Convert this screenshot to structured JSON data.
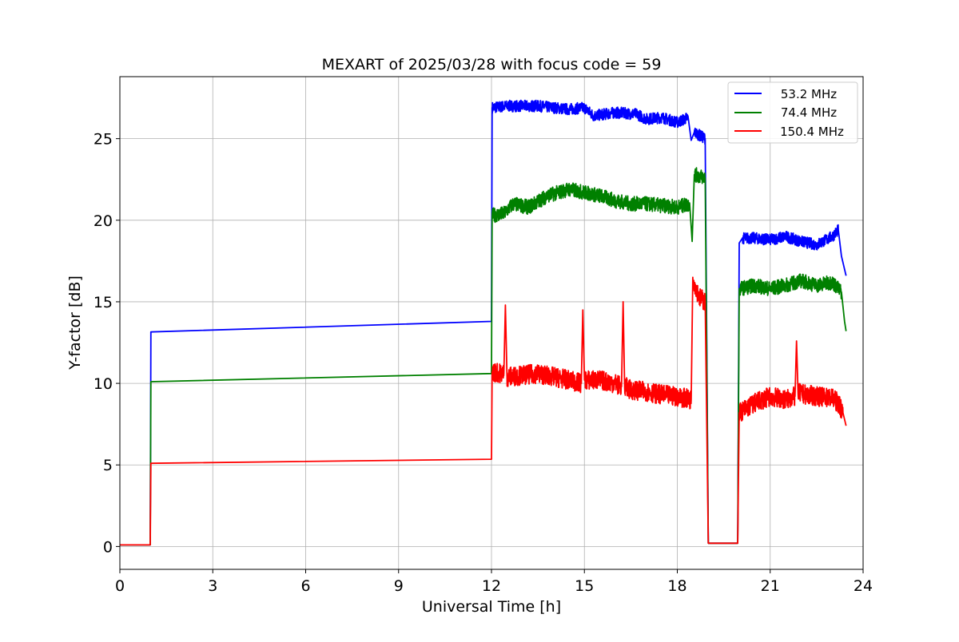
{
  "chart_data": {
    "type": "line",
    "title": "MEXART of 2025/03/28 with focus code = 59",
    "xlabel": "Universal Time [h]",
    "ylabel": "Y-factor [dB]",
    "xlim": [
      0,
      24
    ],
    "ylim": [
      -1.4,
      28.8
    ],
    "xticks": [
      0,
      3,
      6,
      9,
      12,
      15,
      18,
      21,
      24
    ],
    "yticks": [
      0,
      5,
      10,
      15,
      20,
      25
    ],
    "xtick_labels": [
      "0",
      "3",
      "6",
      "9",
      "12",
      "15",
      "18",
      "21",
      "24"
    ],
    "ytick_labels": [
      "0",
      "5",
      "10",
      "15",
      "20",
      "25"
    ],
    "grid": true,
    "legend_position": "top-right",
    "series": [
      {
        "name": "53.2 MHz",
        "color": "#0000ff",
        "x": [
          0,
          0.98,
          1.0,
          12.0,
          12.02,
          12.5,
          13.5,
          14.5,
          15.0,
          15.3,
          16.0,
          16.7,
          17.0,
          17.5,
          18.0,
          18.35,
          18.45,
          18.55,
          18.9,
          19.0,
          19.05,
          19.95,
          20.0,
          20.1,
          20.5,
          21.0,
          21.5,
          22.0,
          22.5,
          23.0,
          23.2,
          23.3,
          23.45
        ],
        "y": [
          0.1,
          0.1,
          13.15,
          13.8,
          26.9,
          27.0,
          27.0,
          26.8,
          26.9,
          26.4,
          26.6,
          26.5,
          26.2,
          26.3,
          26.0,
          26.3,
          24.9,
          25.4,
          25.0,
          0.2,
          0.2,
          0.2,
          18.6,
          18.9,
          18.9,
          18.8,
          19.0,
          18.7,
          18.5,
          19.0,
          19.4,
          17.8,
          16.6
        ]
      },
      {
        "name": "74.4 MHz",
        "color": "#008000",
        "x": [
          0,
          0.98,
          1.0,
          12.0,
          12.02,
          12.4,
          12.7,
          13.2,
          13.8,
          14.5,
          15.0,
          15.5,
          16.0,
          16.5,
          17.0,
          17.5,
          18.0,
          18.4,
          18.48,
          18.55,
          18.9,
          19.0,
          19.05,
          19.95,
          20.0,
          20.5,
          21.0,
          21.5,
          22.0,
          22.5,
          23.0,
          23.3,
          23.4,
          23.45
        ],
        "y": [
          0.1,
          0.1,
          10.1,
          10.6,
          20.3,
          20.4,
          21.0,
          20.8,
          21.5,
          21.9,
          21.7,
          21.5,
          21.2,
          21.0,
          21.0,
          20.9,
          20.8,
          21.0,
          18.7,
          22.8,
          22.6,
          0.2,
          0.2,
          0.2,
          15.8,
          16.0,
          15.8,
          16.0,
          16.3,
          16.0,
          16.2,
          15.6,
          13.8,
          13.2
        ]
      },
      {
        "name": "150.4 MHz",
        "color": "#ff0000",
        "x": [
          0,
          0.98,
          1.0,
          12.0,
          12.02,
          12.4,
          12.45,
          12.5,
          13.0,
          13.5,
          14.0,
          14.5,
          14.9,
          14.95,
          15.0,
          15.5,
          16.0,
          16.2,
          16.25,
          16.3,
          16.5,
          17.0,
          17.5,
          18.0,
          18.45,
          18.5,
          18.7,
          18.9,
          19.0,
          19.05,
          19.95,
          20.0,
          20.5,
          21.0,
          21.5,
          21.8,
          21.85,
          21.9,
          22.5,
          23.0,
          23.2,
          23.35,
          23.45
        ],
        "y": [
          0.1,
          0.1,
          5.1,
          5.35,
          10.7,
          10.6,
          14.8,
          10.4,
          10.5,
          10.6,
          10.4,
          10.2,
          10.0,
          14.5,
          10.2,
          10.2,
          10.0,
          9.8,
          15.0,
          9.8,
          9.6,
          9.5,
          9.3,
          9.2,
          9.0,
          16.5,
          15.3,
          15.0,
          0.2,
          0.2,
          0.2,
          8.2,
          8.8,
          9.2,
          9.0,
          9.2,
          12.6,
          9.4,
          9.2,
          9.1,
          8.8,
          8.2,
          7.4
        ]
      }
    ]
  }
}
